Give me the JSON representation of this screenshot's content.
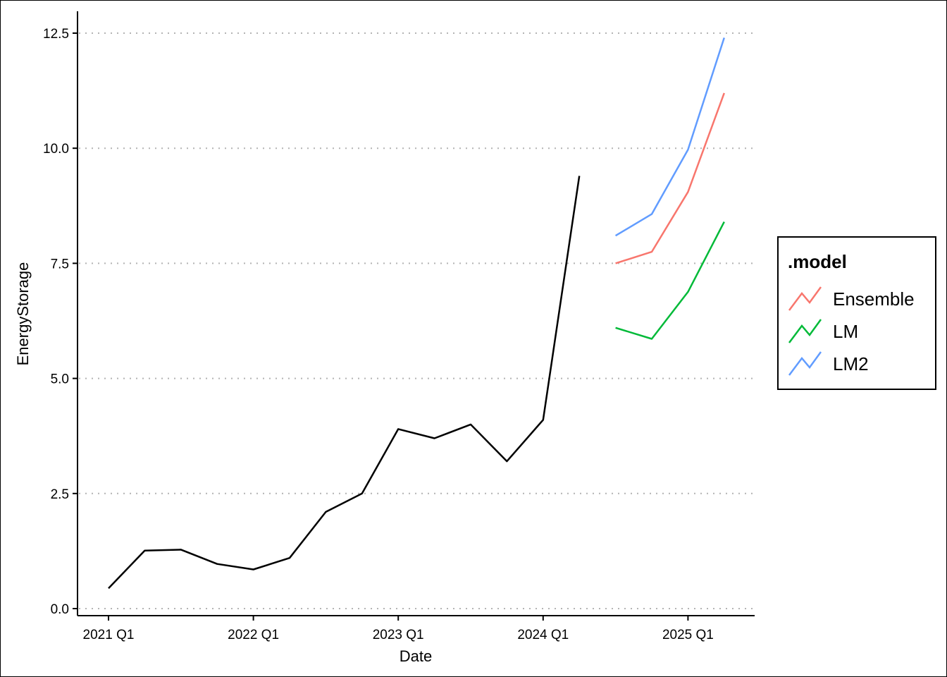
{
  "chart_data": {
    "type": "line",
    "xlabel": "Date",
    "ylabel": "EnergyStorage",
    "ylim": [
      0,
      12.5
    ],
    "y_ticks": [
      {
        "value": 0,
        "label": "0.0"
      },
      {
        "value": 2.5,
        "label": "2.5"
      },
      {
        "value": 5,
        "label": "5.0"
      },
      {
        "value": 7.5,
        "label": "7.5"
      },
      {
        "value": 10,
        "label": "10.0"
      },
      {
        "value": 12.5,
        "label": "12.5"
      }
    ],
    "x_ticks": [
      {
        "value": "2021 Q1",
        "label": "2021 Q1"
      },
      {
        "value": "2022 Q1",
        "label": "2022 Q1"
      },
      {
        "value": "2023 Q1",
        "label": "2023 Q1"
      },
      {
        "value": "2024 Q1",
        "label": "2024 Q1"
      },
      {
        "value": "2025 Q1",
        "label": "2025 Q1"
      }
    ],
    "grid": "horizontal-dotted",
    "legend": {
      "title": ".model",
      "placement": "right",
      "entries": [
        "Ensemble",
        "LM",
        "LM2"
      ]
    },
    "series": [
      {
        "color": "#000000",
        "x": [
          "2021 Q1",
          "2021 Q2",
          "2021 Q3",
          "2021 Q4",
          "2022 Q1",
          "2022 Q2",
          "2022 Q3",
          "2022 Q4",
          "2023 Q1",
          "2023 Q2",
          "2023 Q3",
          "2023 Q4",
          "2024 Q1",
          "2024 Q2"
        ],
        "values": [
          0.44,
          1.26,
          1.28,
          0.97,
          0.85,
          1.1,
          2.1,
          2.5,
          3.9,
          3.7,
          4.0,
          3.2,
          4.1,
          9.4
        ]
      },
      {
        "name": "Ensemble",
        "color": "#F8766D",
        "x": [
          "2024 Q3",
          "2024 Q4",
          "2025 Q1",
          "2025 Q2"
        ],
        "values": [
          7.5,
          7.75,
          9.05,
          11.2
        ]
      },
      {
        "name": "LM",
        "color": "#00BA38",
        "x": [
          "2024 Q3",
          "2024 Q4",
          "2025 Q1",
          "2025 Q2"
        ],
        "values": [
          6.1,
          5.86,
          6.88,
          8.4
        ]
      },
      {
        "name": "LM2",
        "color": "#619CFF",
        "x": [
          "2024 Q3",
          "2024 Q4",
          "2025 Q1",
          "2025 Q2"
        ],
        "values": [
          8.1,
          8.57,
          9.97,
          12.4
        ]
      }
    ]
  }
}
